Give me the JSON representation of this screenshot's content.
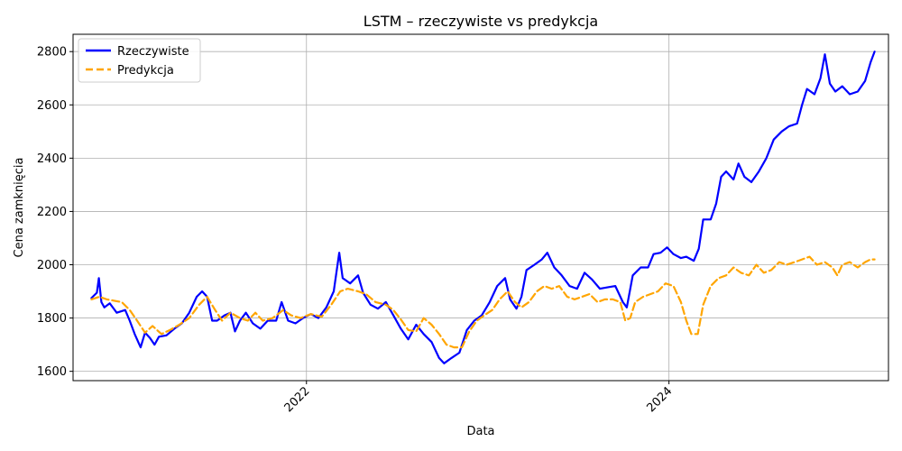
{
  "chart_data": {
    "type": "line",
    "title": "LSTM – rzeczywiste vs predykcja",
    "xlabel": "Data",
    "ylabel": "Cena zamknięcia",
    "xlim": [
      "2020-09-18",
      "2025-03-18"
    ],
    "ylim": [
      1565,
      2865
    ],
    "grid": true,
    "legend_position": "top-left",
    "x_ticks": [
      {
        "date": "2022-01-01",
        "label": "2022"
      },
      {
        "date": "2024-01-01",
        "label": "2024"
      }
    ],
    "y_ticks": [
      1600,
      1800,
      2000,
      2200,
      2400,
      2600,
      2800
    ],
    "series": [
      {
        "name": "Rzeczywiste",
        "color": "#0000ff",
        "style": "solid",
        "points": [
          [
            "2020-10-25",
            1875
          ],
          [
            "2020-11-05",
            1895
          ],
          [
            "2020-11-09",
            1950
          ],
          [
            "2020-11-14",
            1860
          ],
          [
            "2020-11-20",
            1840
          ],
          [
            "2020-12-01",
            1855
          ],
          [
            "2020-12-15",
            1820
          ],
          [
            "2021-01-01",
            1830
          ],
          [
            "2021-01-10",
            1790
          ],
          [
            "2021-01-20",
            1740
          ],
          [
            "2021-02-01",
            1690
          ],
          [
            "2021-02-10",
            1745
          ],
          [
            "2021-02-20",
            1725
          ],
          [
            "2021-03-01",
            1700
          ],
          [
            "2021-03-10",
            1730
          ],
          [
            "2021-03-25",
            1735
          ],
          [
            "2021-04-10",
            1760
          ],
          [
            "2021-04-25",
            1780
          ],
          [
            "2021-05-10",
            1820
          ],
          [
            "2021-05-25",
            1880
          ],
          [
            "2021-06-05",
            1900
          ],
          [
            "2021-06-15",
            1880
          ],
          [
            "2021-06-25",
            1790
          ],
          [
            "2021-07-05",
            1790
          ],
          [
            "2021-07-20",
            1810
          ],
          [
            "2021-08-01",
            1820
          ],
          [
            "2021-08-10",
            1750
          ],
          [
            "2021-08-20",
            1790
          ],
          [
            "2021-09-01",
            1820
          ],
          [
            "2021-09-15",
            1780
          ],
          [
            "2021-09-30",
            1760
          ],
          [
            "2021-10-15",
            1790
          ],
          [
            "2021-11-01",
            1790
          ],
          [
            "2021-11-12",
            1860
          ],
          [
            "2021-11-25",
            1790
          ],
          [
            "2021-12-10",
            1780
          ],
          [
            "2021-12-25",
            1800
          ],
          [
            "2022-01-10",
            1815
          ],
          [
            "2022-01-25",
            1800
          ],
          [
            "2022-02-10",
            1840
          ],
          [
            "2022-02-25",
            1900
          ],
          [
            "2022-03-08",
            2045
          ],
          [
            "2022-03-15",
            1950
          ],
          [
            "2022-03-30",
            1930
          ],
          [
            "2022-04-15",
            1960
          ],
          [
            "2022-04-25",
            1895
          ],
          [
            "2022-05-10",
            1850
          ],
          [
            "2022-05-25",
            1835
          ],
          [
            "2022-06-10",
            1860
          ],
          [
            "2022-06-25",
            1810
          ],
          [
            "2022-07-10",
            1760
          ],
          [
            "2022-07-25",
            1720
          ],
          [
            "2022-08-10",
            1775
          ],
          [
            "2022-08-25",
            1740
          ],
          [
            "2022-09-10",
            1710
          ],
          [
            "2022-09-25",
            1650
          ],
          [
            "2022-10-05",
            1630
          ],
          [
            "2022-10-20",
            1650
          ],
          [
            "2022-11-05",
            1670
          ],
          [
            "2022-11-20",
            1755
          ],
          [
            "2022-12-05",
            1790
          ],
          [
            "2022-12-20",
            1810
          ],
          [
            "2023-01-05",
            1860
          ],
          [
            "2023-01-20",
            1920
          ],
          [
            "2023-02-05",
            1950
          ],
          [
            "2023-02-15",
            1870
          ],
          [
            "2023-02-28",
            1835
          ],
          [
            "2023-03-10",
            1880
          ],
          [
            "2023-03-20",
            1980
          ],
          [
            "2023-04-05",
            2000
          ],
          [
            "2023-04-20",
            2020
          ],
          [
            "2023-05-01",
            2045
          ],
          [
            "2023-05-15",
            1990
          ],
          [
            "2023-05-30",
            1960
          ],
          [
            "2023-06-15",
            1920
          ],
          [
            "2023-06-30",
            1910
          ],
          [
            "2023-07-15",
            1970
          ],
          [
            "2023-07-30",
            1945
          ],
          [
            "2023-08-15",
            1910
          ],
          [
            "2023-08-30",
            1915
          ],
          [
            "2023-09-15",
            1920
          ],
          [
            "2023-09-30",
            1860
          ],
          [
            "2023-10-08",
            1840
          ],
          [
            "2023-10-20",
            1960
          ],
          [
            "2023-11-05",
            1990
          ],
          [
            "2023-11-20",
            1990
          ],
          [
            "2023-12-01",
            2040
          ],
          [
            "2023-12-15",
            2045
          ],
          [
            "2023-12-28",
            2065
          ],
          [
            "2024-01-10",
            2040
          ],
          [
            "2024-01-25",
            2025
          ],
          [
            "2024-02-05",
            2030
          ],
          [
            "2024-02-20",
            2015
          ],
          [
            "2024-03-01",
            2060
          ],
          [
            "2024-03-10",
            2170
          ],
          [
            "2024-03-25",
            2170
          ],
          [
            "2024-04-05",
            2230
          ],
          [
            "2024-04-15",
            2330
          ],
          [
            "2024-04-25",
            2350
          ],
          [
            "2024-05-10",
            2320
          ],
          [
            "2024-05-20",
            2380
          ],
          [
            "2024-06-01",
            2330
          ],
          [
            "2024-06-15",
            2310
          ],
          [
            "2024-06-30",
            2350
          ],
          [
            "2024-07-15",
            2400
          ],
          [
            "2024-07-30",
            2470
          ],
          [
            "2024-08-15",
            2500
          ],
          [
            "2024-08-30",
            2520
          ],
          [
            "2024-09-15",
            2530
          ],
          [
            "2024-09-25",
            2600
          ],
          [
            "2024-10-05",
            2660
          ],
          [
            "2024-10-20",
            2640
          ],
          [
            "2024-11-01",
            2700
          ],
          [
            "2024-11-10",
            2790
          ],
          [
            "2024-11-20",
            2680
          ],
          [
            "2024-12-01",
            2650
          ],
          [
            "2024-12-15",
            2670
          ],
          [
            "2024-12-30",
            2640
          ],
          [
            "2025-01-15",
            2650
          ],
          [
            "2025-01-30",
            2690
          ],
          [
            "2025-02-10",
            2760
          ],
          [
            "2025-02-18",
            2800
          ]
        ]
      },
      {
        "name": "Predykcja",
        "color": "#ffa500",
        "style": "dashed",
        "points": [
          [
            "2020-10-25",
            1870
          ],
          [
            "2020-11-10",
            1880
          ],
          [
            "2020-11-25",
            1870
          ],
          [
            "2020-12-10",
            1865
          ],
          [
            "2020-12-25",
            1860
          ],
          [
            "2021-01-10",
            1830
          ],
          [
            "2021-01-25",
            1790
          ],
          [
            "2021-02-10",
            1745
          ],
          [
            "2021-02-25",
            1770
          ],
          [
            "2021-03-15",
            1740
          ],
          [
            "2021-04-01",
            1755
          ],
          [
            "2021-04-20",
            1775
          ],
          [
            "2021-05-10",
            1800
          ],
          [
            "2021-05-30",
            1850
          ],
          [
            "2021-06-15",
            1880
          ],
          [
            "2021-07-01",
            1830
          ],
          [
            "2021-07-15",
            1790
          ],
          [
            "2021-08-01",
            1820
          ],
          [
            "2021-08-20",
            1800
          ],
          [
            "2021-09-05",
            1790
          ],
          [
            "2021-09-20",
            1820
          ],
          [
            "2021-10-05",
            1790
          ],
          [
            "2021-10-25",
            1800
          ],
          [
            "2021-11-15",
            1830
          ],
          [
            "2021-12-01",
            1810
          ],
          [
            "2021-12-20",
            1800
          ],
          [
            "2022-01-10",
            1815
          ],
          [
            "2022-02-01",
            1805
          ],
          [
            "2022-02-20",
            1850
          ],
          [
            "2022-03-10",
            1900
          ],
          [
            "2022-03-25",
            1910
          ],
          [
            "2022-04-15",
            1900
          ],
          [
            "2022-05-01",
            1890
          ],
          [
            "2022-05-20",
            1860
          ],
          [
            "2022-06-10",
            1850
          ],
          [
            "2022-06-25",
            1830
          ],
          [
            "2022-07-10",
            1795
          ],
          [
            "2022-07-25",
            1755
          ],
          [
            "2022-08-10",
            1750
          ],
          [
            "2022-08-25",
            1800
          ],
          [
            "2022-09-10",
            1775
          ],
          [
            "2022-09-25",
            1740
          ],
          [
            "2022-10-10",
            1700
          ],
          [
            "2022-10-25",
            1690
          ],
          [
            "2022-11-10",
            1690
          ],
          [
            "2022-11-25",
            1750
          ],
          [
            "2022-12-10",
            1790
          ],
          [
            "2022-12-25",
            1810
          ],
          [
            "2023-01-10",
            1830
          ],
          [
            "2023-01-25",
            1870
          ],
          [
            "2023-02-10",
            1900
          ],
          [
            "2023-02-25",
            1860
          ],
          [
            "2023-03-10",
            1840
          ],
          [
            "2023-03-25",
            1860
          ],
          [
            "2023-04-10",
            1900
          ],
          [
            "2023-04-25",
            1920
          ],
          [
            "2023-05-10",
            1910
          ],
          [
            "2023-05-25",
            1920
          ],
          [
            "2023-06-10",
            1880
          ],
          [
            "2023-06-25",
            1870
          ],
          [
            "2023-07-10",
            1880
          ],
          [
            "2023-07-25",
            1890
          ],
          [
            "2023-08-10",
            1860
          ],
          [
            "2023-08-25",
            1870
          ],
          [
            "2023-09-10",
            1870
          ],
          [
            "2023-09-25",
            1860
          ],
          [
            "2023-10-05",
            1790
          ],
          [
            "2023-10-15",
            1800
          ],
          [
            "2023-10-25",
            1860
          ],
          [
            "2023-11-10",
            1880
          ],
          [
            "2023-11-25",
            1890
          ],
          [
            "2023-12-10",
            1900
          ],
          [
            "2023-12-25",
            1930
          ],
          [
            "2024-01-10",
            1920
          ],
          [
            "2024-01-25",
            1860
          ],
          [
            "2024-02-05",
            1790
          ],
          [
            "2024-02-15",
            1740
          ],
          [
            "2024-02-28",
            1740
          ],
          [
            "2024-03-10",
            1850
          ],
          [
            "2024-03-25",
            1920
          ],
          [
            "2024-04-10",
            1950
          ],
          [
            "2024-04-25",
            1960
          ],
          [
            "2024-05-10",
            1990
          ],
          [
            "2024-05-25",
            1970
          ],
          [
            "2024-06-10",
            1960
          ],
          [
            "2024-06-25",
            2000
          ],
          [
            "2024-07-10",
            1970
          ],
          [
            "2024-07-25",
            1980
          ],
          [
            "2024-08-10",
            2010
          ],
          [
            "2024-08-25",
            2000
          ],
          [
            "2024-09-10",
            2010
          ],
          [
            "2024-09-25",
            2020
          ],
          [
            "2024-10-10",
            2030
          ],
          [
            "2024-10-25",
            2000
          ],
          [
            "2024-11-10",
            2010
          ],
          [
            "2024-11-25",
            1990
          ],
          [
            "2024-12-05",
            1960
          ],
          [
            "2024-12-15",
            2000
          ],
          [
            "2024-12-30",
            2010
          ],
          [
            "2025-01-15",
            1990
          ],
          [
            "2025-01-30",
            2010
          ],
          [
            "2025-02-10",
            2020
          ],
          [
            "2025-02-18",
            2020
          ]
        ]
      }
    ]
  }
}
